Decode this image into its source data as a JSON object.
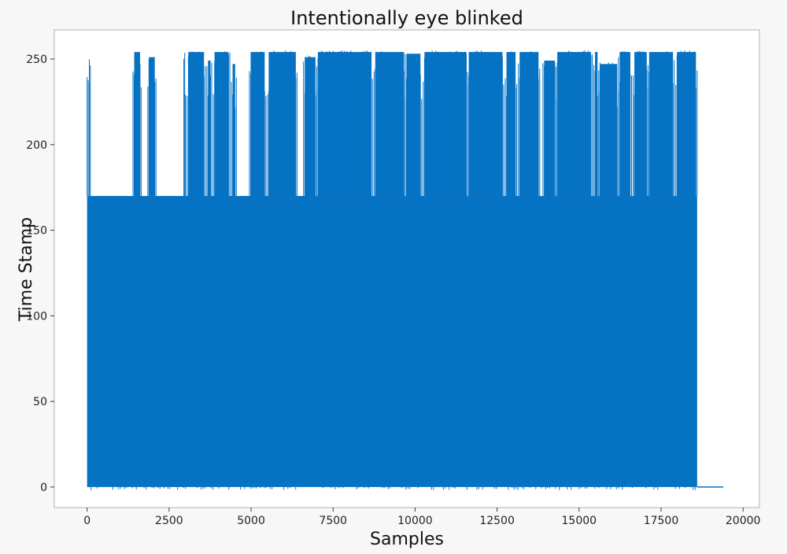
{
  "chart_data": {
    "type": "line",
    "title": "Intentionally eye blinked",
    "xlabel": "Samples",
    "ylabel": "Time Stamp",
    "xlim": [
      -1000,
      20500
    ],
    "ylim": [
      -12,
      267
    ],
    "xticks": [
      0,
      2500,
      5000,
      7500,
      10000,
      12500,
      15000,
      17500,
      20000
    ],
    "xtick_labels": [
      "0",
      "2500",
      "5000",
      "7500",
      "10000",
      "12500",
      "15000",
      "17500",
      "20000"
    ],
    "yticks": [
      0,
      50,
      100,
      150,
      200,
      250
    ],
    "ytick_labels": [
      "0",
      "50",
      "100",
      "150",
      "200",
      "250"
    ],
    "grid": false,
    "series": [
      {
        "color": "#0672c4",
        "samples_end": 18600,
        "band_low": 0,
        "band_high": 170,
        "tail_end": 19400,
        "tail_value": 0,
        "spike_bursts": [
          {
            "x": [
              0,
              100
            ],
            "y": 253
          },
          {
            "x": [
              1400,
              1650
            ],
            "y": 255
          },
          {
            "x": [
              1850,
              2100
            ],
            "y": 252
          },
          {
            "x": [
              2950,
              3000
            ],
            "y": 255
          },
          {
            "x": [
              3050,
              3600
            ],
            "y": 255
          },
          {
            "x": [
              3650,
              3800
            ],
            "y": 250
          },
          {
            "x": [
              3850,
              4350
            ],
            "y": 255
          },
          {
            "x": [
              4400,
              4550
            ],
            "y": 248
          },
          {
            "x": [
              4950,
              5450
            ],
            "y": 255
          },
          {
            "x": [
              5500,
              6400
            ],
            "y": 255
          },
          {
            "x": [
              6600,
              7000
            ],
            "y": 252
          },
          {
            "x": [
              7000,
              8700
            ],
            "y": 255
          },
          {
            "x": [
              8750,
              9700
            ],
            "y": 255
          },
          {
            "x": [
              9700,
              10200
            ],
            "y": 254
          },
          {
            "x": [
              10250,
              11600
            ],
            "y": 255
          },
          {
            "x": [
              11600,
              12700
            ],
            "y": 255
          },
          {
            "x": [
              12750,
              13100
            ],
            "y": 255
          },
          {
            "x": [
              13150,
              13800
            ],
            "y": 255
          },
          {
            "x": [
              13900,
              14300
            ],
            "y": 250
          },
          {
            "x": [
              14300,
              15400
            ],
            "y": 255
          },
          {
            "x": [
              15450,
              15600
            ],
            "y": 255
          },
          {
            "x": [
              15600,
              16200
            ],
            "y": 248
          },
          {
            "x": [
              16200,
              16600
            ],
            "y": 255
          },
          {
            "x": [
              16650,
              17100
            ],
            "y": 255
          },
          {
            "x": [
              17100,
              17900
            ],
            "y": 255
          },
          {
            "x": [
              17950,
              18600
            ],
            "y": 255
          }
        ]
      }
    ]
  }
}
